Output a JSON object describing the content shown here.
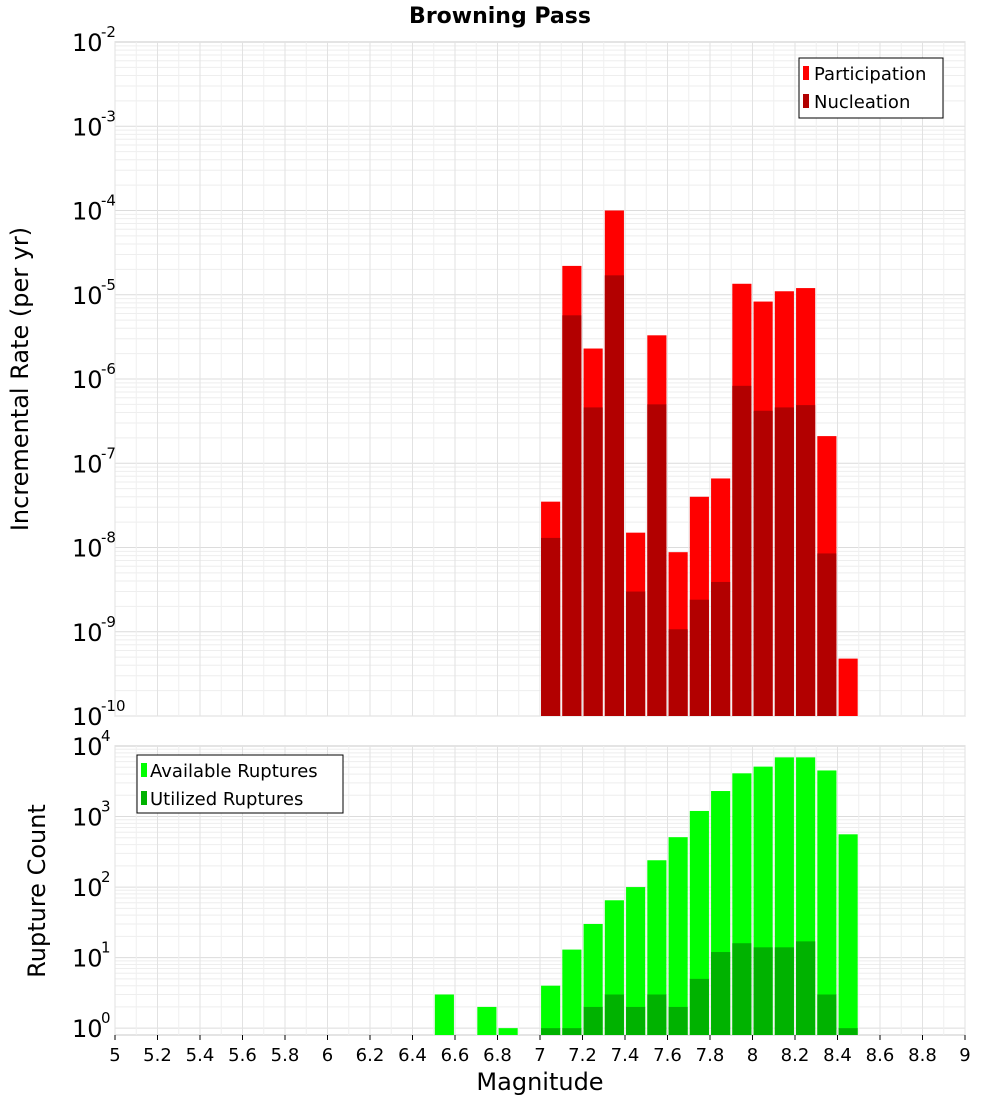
{
  "chart_data": [
    {
      "type": "bar",
      "title": "Browning Pass",
      "ylabel": "Incremental Rate (per yr)",
      "xlabel": "",
      "yscale": "log",
      "ylim": [
        1e-10,
        0.01
      ],
      "xlim": [
        5,
        9
      ],
      "grid": true,
      "legend_position": "top-right",
      "y_tick_labels": [
        {
          "base": "10",
          "exp": "-10"
        },
        {
          "base": "10",
          "exp": "-9"
        },
        {
          "base": "10",
          "exp": "-8"
        },
        {
          "base": "10",
          "exp": "-7"
        },
        {
          "base": "10",
          "exp": "-6"
        },
        {
          "base": "10",
          "exp": "-5"
        },
        {
          "base": "10",
          "exp": "-4"
        },
        {
          "base": "10",
          "exp": "-3"
        },
        {
          "base": "10",
          "exp": "-2"
        }
      ],
      "x": [
        7.05,
        7.15,
        7.25,
        7.35,
        7.45,
        7.55,
        7.65,
        7.75,
        7.85,
        7.95,
        8.05,
        8.15,
        8.25,
        8.35,
        8.45
      ],
      "series": [
        {
          "name": "Participation",
          "color": "#ff0000",
          "values": [
            3.5e-08,
            2.2e-05,
            2.3e-06,
            0.0001,
            1.5e-08,
            3.3e-06,
            8.8e-09,
            4e-08,
            6.6e-08,
            1.35e-05,
            8.3e-06,
            1.1e-05,
            1.2e-05,
            2.1e-07,
            4.8e-10
          ]
        },
        {
          "name": "Nucleation",
          "color": "#b20000",
          "values": [
            1.3e-08,
            5.7e-06,
            4.6e-07,
            1.7e-05,
            3e-09,
            5e-07,
            1.07e-09,
            2.4e-09,
            3.9e-09,
            8.3e-07,
            4.2e-07,
            4.6e-07,
            4.9e-07,
            8.5e-09,
            null
          ]
        }
      ]
    },
    {
      "type": "bar",
      "title": "",
      "ylabel": "Rupture Count",
      "xlabel": "Magnitude",
      "yscale": "log",
      "ylim": [
        0.8,
        10000
      ],
      "xlim": [
        5,
        9
      ],
      "grid": true,
      "legend_position": "top-left",
      "y_tick_labels": [
        {
          "base": "10",
          "exp": "0"
        },
        {
          "base": "10",
          "exp": "1"
        },
        {
          "base": "10",
          "exp": "2"
        },
        {
          "base": "10",
          "exp": "3"
        },
        {
          "base": "10",
          "exp": "4"
        }
      ],
      "x_tick_labels": [
        "5",
        "5.2",
        "5.4",
        "5.6",
        "5.8",
        "6",
        "6.2",
        "6.4",
        "6.6",
        "6.8",
        "7",
        "7.2",
        "7.4",
        "7.6",
        "7.8",
        "8",
        "8.2",
        "8.4",
        "8.6",
        "8.8",
        "9"
      ],
      "x": [
        6.55,
        6.75,
        6.85,
        7.05,
        7.15,
        7.25,
        7.35,
        7.45,
        7.55,
        7.65,
        7.75,
        7.85,
        7.95,
        8.05,
        8.15,
        8.25,
        8.35,
        8.45
      ],
      "series": [
        {
          "name": "Available Ruptures",
          "color": "#00ff00",
          "values": [
            3,
            2,
            1,
            4,
            13,
            30,
            65,
            100,
            240,
            510,
            1200,
            2300,
            4100,
            5100,
            6900,
            6900,
            4500,
            560
          ]
        },
        {
          "name": "Utilized Ruptures",
          "color": "#00b200",
          "values": [
            null,
            null,
            null,
            1,
            1,
            2,
            3,
            2,
            3,
            2,
            5,
            12,
            16,
            14,
            14,
            17,
            3,
            1
          ]
        }
      ]
    }
  ]
}
